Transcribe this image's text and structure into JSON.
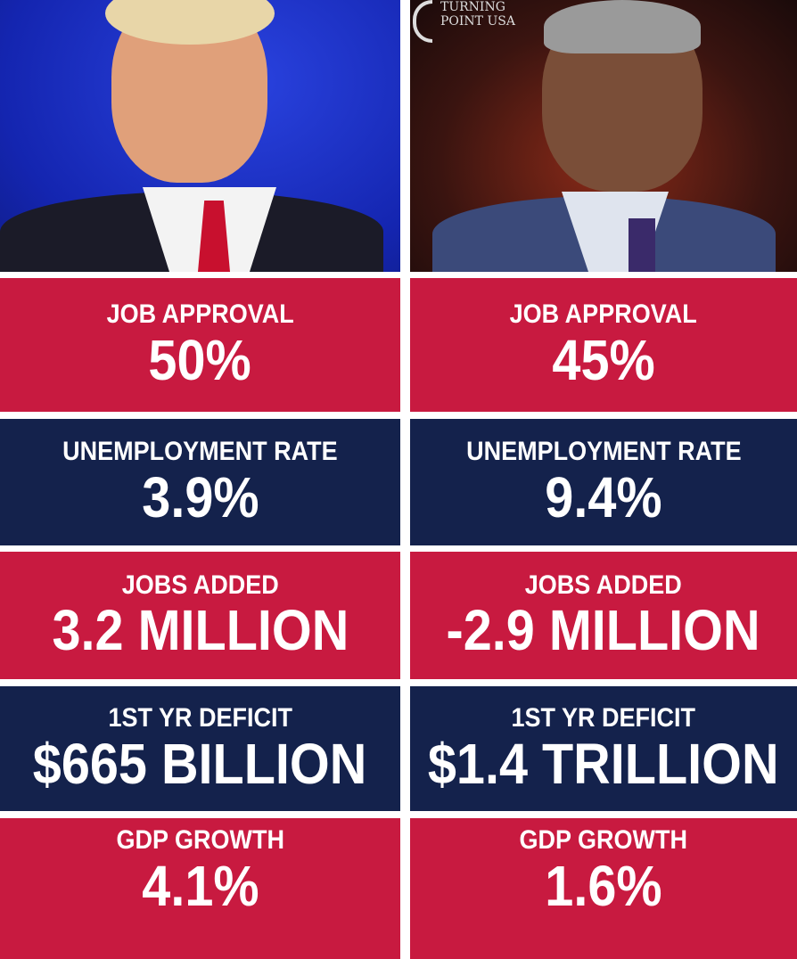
{
  "logo": {
    "line1": "TURNING",
    "line2": "POINT USA"
  },
  "colors": {
    "red": "#c81a40",
    "navy": "#14224c"
  },
  "left": {
    "rows": [
      {
        "label": "JOB APPROVAL",
        "value": "50%"
      },
      {
        "label": "UNEMPLOYMENT RATE",
        "value": "3.9%"
      },
      {
        "label": "JOBS ADDED",
        "value": "3.2 MILLION"
      },
      {
        "label": "1ST YR DEFICIT",
        "value": "$665 BILLION"
      },
      {
        "label": "GDP GROWTH",
        "value": "4.1%"
      }
    ]
  },
  "right": {
    "rows": [
      {
        "label": "JOB APPROVAL",
        "value": "45%"
      },
      {
        "label": "UNEMPLOYMENT RATE",
        "value": "9.4%"
      },
      {
        "label": "JOBS ADDED",
        "value": "-2.9 MILLION"
      },
      {
        "label": "1ST YR DEFICIT",
        "value": "$1.4 TRILLION"
      },
      {
        "label": "GDP GROWTH",
        "value": "1.6%"
      }
    ]
  }
}
